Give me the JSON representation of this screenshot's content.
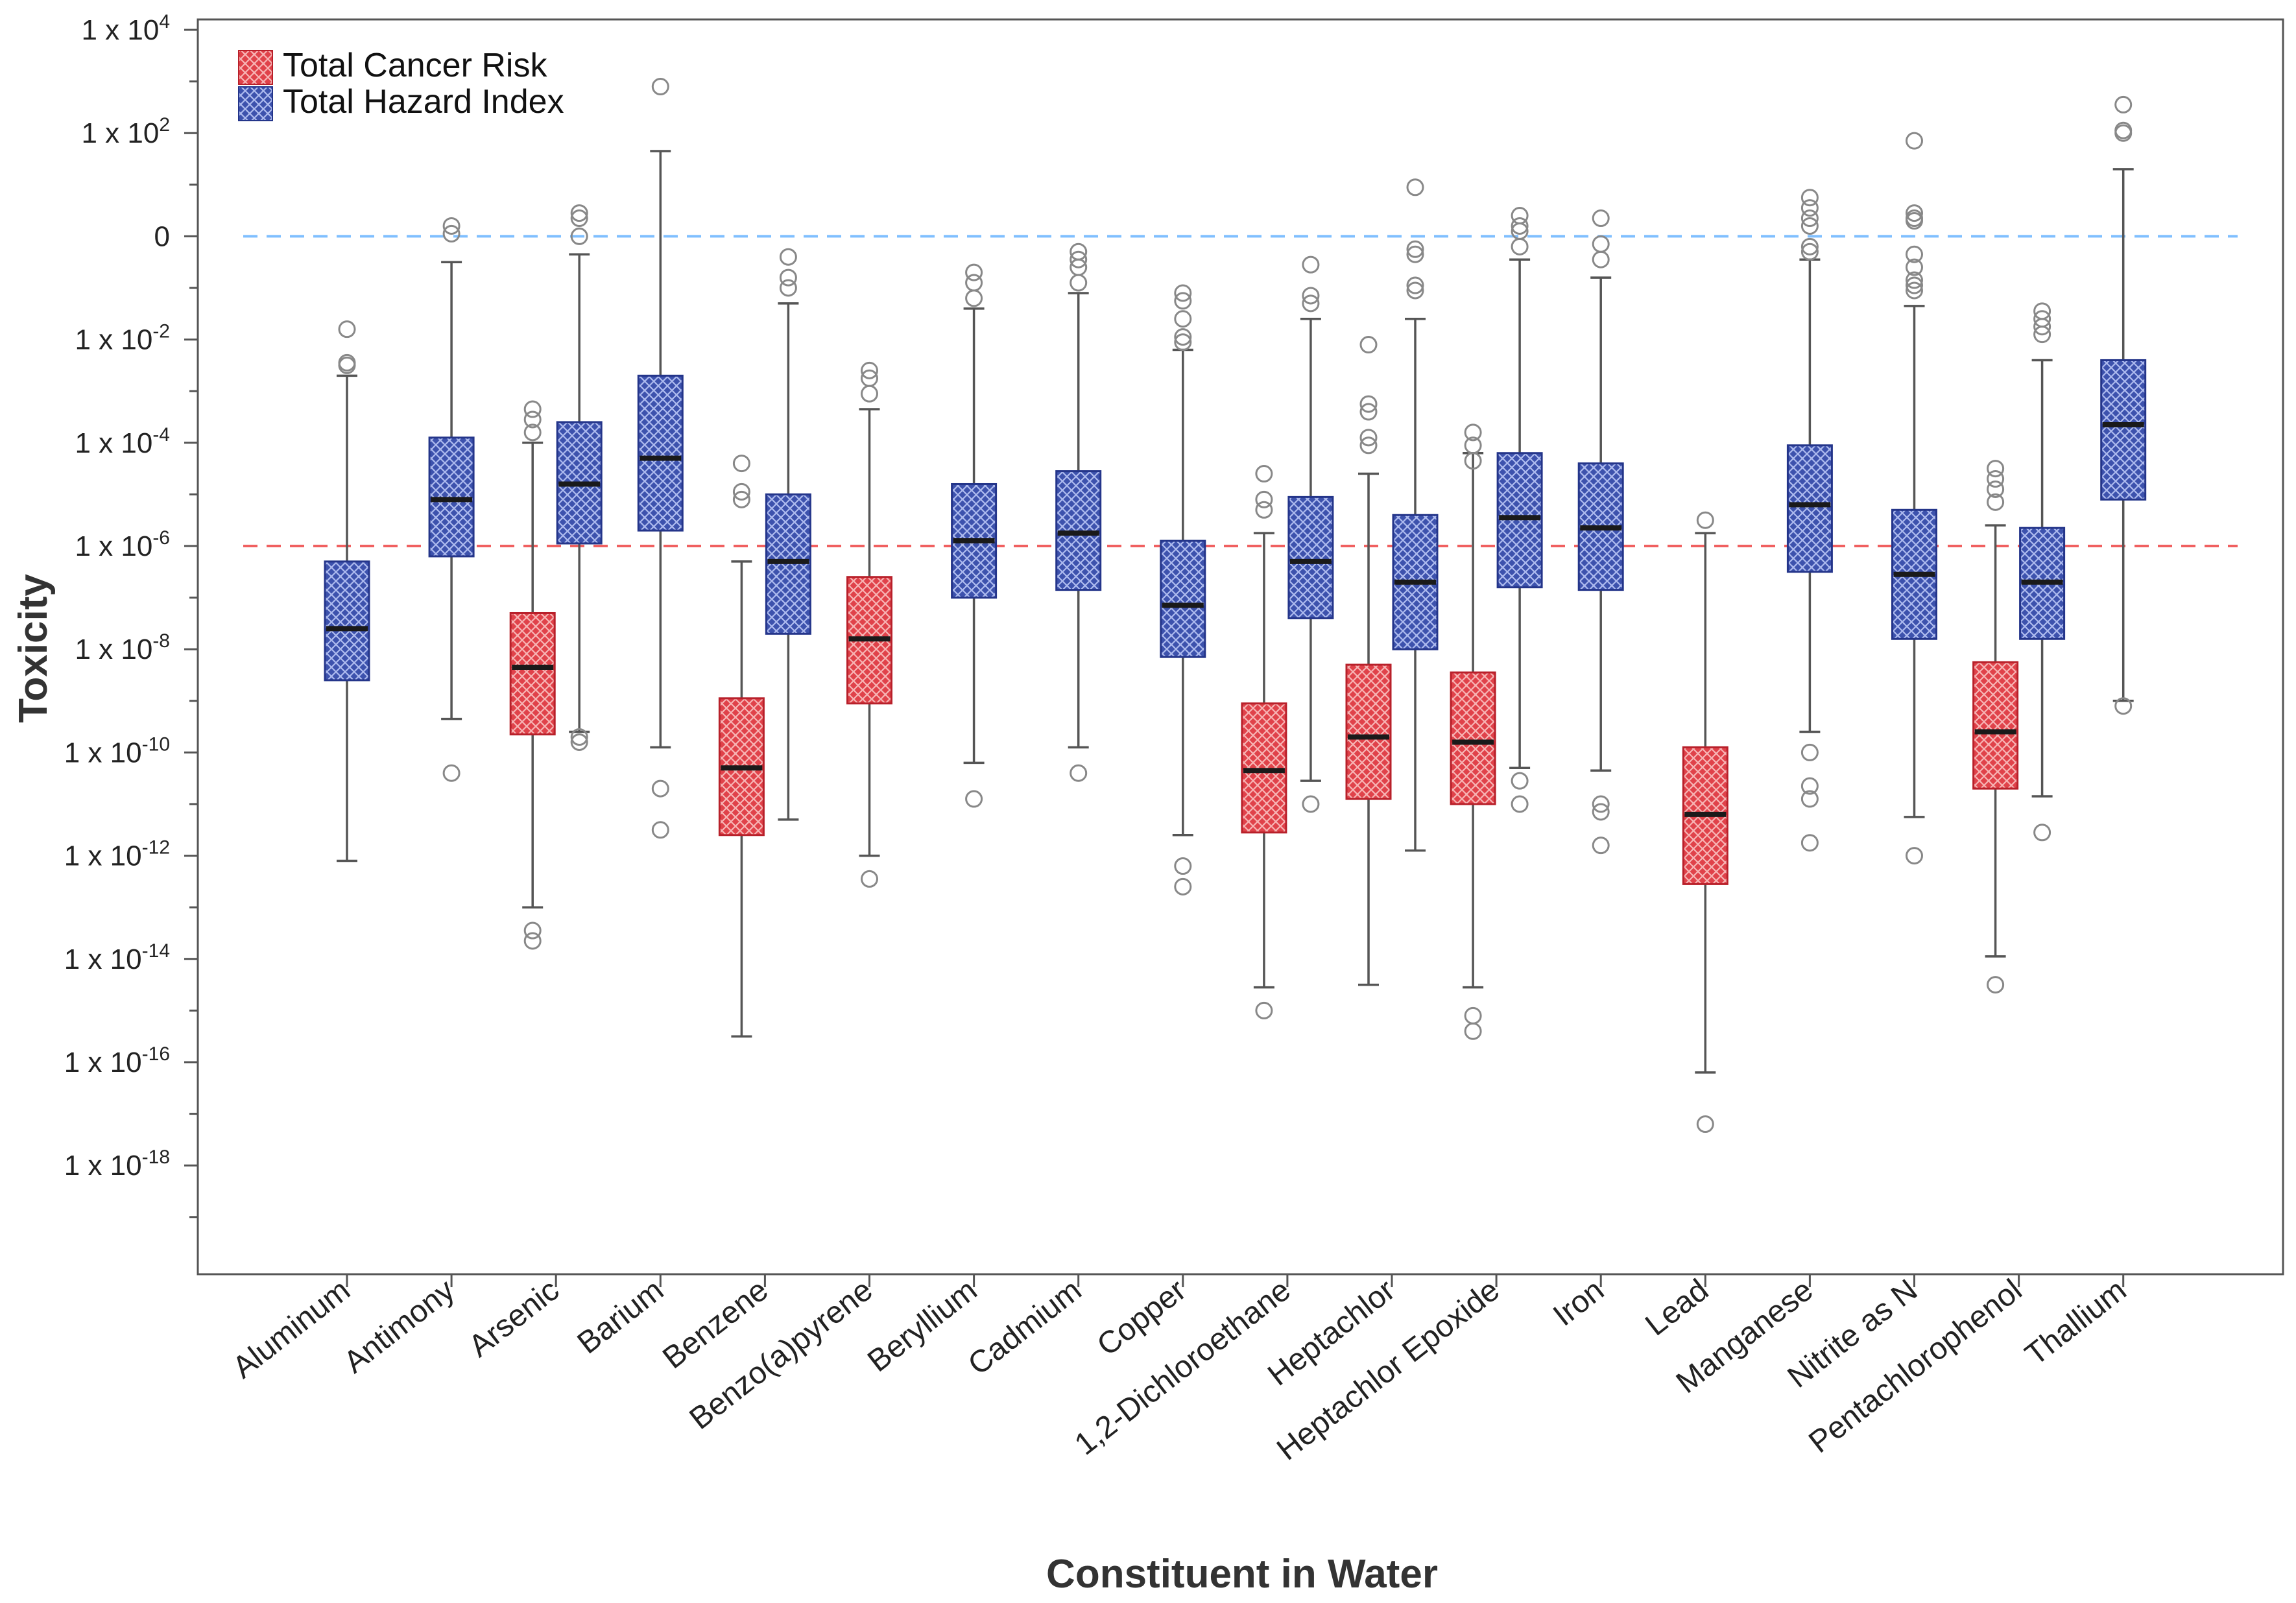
{
  "chart_data": {
    "type": "boxplot",
    "xlabel": "Constituent in Water",
    "ylabel": "Toxicity",
    "yscale": "log10",
    "ylim_exp": [
      -19,
      4
    ],
    "yticks": [
      {
        "exp": 4,
        "label": "1 x 10",
        "sup": "4"
      },
      {
        "exp": 2,
        "label": "1 x 10",
        "sup": "2"
      },
      {
        "exp": 0,
        "label": "0",
        "sup": ""
      },
      {
        "exp": -2,
        "label": "1 x 10",
        "sup": "-2"
      },
      {
        "exp": -4,
        "label": "1 x 10",
        "sup": "-4"
      },
      {
        "exp": -6,
        "label": "1 x 10",
        "sup": "-6"
      },
      {
        "exp": -8,
        "label": "1 x 10",
        "sup": "-8"
      },
      {
        "exp": -10,
        "label": "1 x 10",
        "sup": "-10"
      },
      {
        "exp": -12,
        "label": "1 x 10",
        "sup": "-12"
      },
      {
        "exp": -14,
        "label": "1 x 10",
        "sup": "-14"
      },
      {
        "exp": -16,
        "label": "1 x 10",
        "sup": "-16"
      },
      {
        "exp": -18,
        "label": "1 x 10",
        "sup": "-18"
      }
    ],
    "reference_lines": [
      {
        "exp": 0,
        "color": "#7fbfff",
        "meaning": "hazard index threshold"
      },
      {
        "exp": -6,
        "color": "#f06060",
        "meaning": "cancer risk threshold"
      }
    ],
    "categories": [
      "Aluminum",
      "Antimony",
      "Arsenic",
      "Barium",
      "Benzene",
      "Benzo(a)pyrene",
      "Beryllium",
      "Cadmium",
      "Copper",
      "1,2-Dichloroethane",
      "Heptachlor",
      "Heptachlor Epoxide",
      "Iron",
      "Lead",
      "Manganese",
      "Nitrite as N",
      "Pentachlorophenol",
      "Thallium"
    ],
    "legend": [
      {
        "key": "cancer",
        "label": "Total Cancer Risk",
        "color": "#e0424a"
      },
      {
        "key": "hazard",
        "label": "Total Hazard Index",
        "color": "#3d52ad"
      }
    ],
    "series": [
      {
        "category": "Aluminum",
        "metric": "hazard",
        "whisker_low": -12.1,
        "q1": -8.6,
        "median": -7.6,
        "q3": -6.3,
        "whisker_high": -2.7,
        "outliers": [
          -2.45,
          -2.5,
          -1.8
        ]
      },
      {
        "category": "Antimony",
        "metric": "hazard",
        "whisker_low": -9.35,
        "q1": -6.2,
        "median": -5.1,
        "q3": -3.9,
        "whisker_high": -0.5,
        "outliers": [
          0.2,
          0.05,
          -10.4
        ]
      },
      {
        "category": "Arsenic",
        "metric": "cancer",
        "whisker_low": -13.0,
        "q1": -9.65,
        "median": -8.35,
        "q3": -7.3,
        "whisker_high": -4.0,
        "outliers": [
          -3.35,
          -3.55,
          -3.8,
          -13.45,
          -13.65
        ]
      },
      {
        "category": "Arsenic",
        "metric": "hazard",
        "whisker_low": -9.6,
        "q1": -5.95,
        "median": -4.8,
        "q3": -3.6,
        "whisker_high": -0.35,
        "outliers": [
          0.45,
          0.35,
          0.0,
          -9.8,
          -9.7
        ]
      },
      {
        "category": "Barium",
        "metric": "hazard",
        "whisker_low": -9.9,
        "q1": -5.7,
        "median": -4.3,
        "q3": -2.7,
        "whisker_high": 1.65,
        "outliers": [
          2.9,
          -10.7,
          -11.5
        ]
      },
      {
        "category": "Benzene",
        "metric": "cancer",
        "whisker_low": -15.5,
        "q1": -11.6,
        "median": -10.3,
        "q3": -8.95,
        "whisker_high": -6.3,
        "outliers": [
          -4.4,
          -4.95,
          -5.1
        ]
      },
      {
        "category": "Benzene",
        "metric": "hazard",
        "whisker_low": -11.3,
        "q1": -7.7,
        "median": -6.3,
        "q3": -5.0,
        "whisker_high": -1.3,
        "outliers": [
          -0.4,
          -0.8,
          -1.0
        ]
      },
      {
        "category": "Benzo(a)pyrene",
        "metric": "cancer",
        "whisker_low": -12.0,
        "q1": -9.05,
        "median": -7.8,
        "q3": -6.6,
        "whisker_high": -3.35,
        "outliers": [
          -2.6,
          -2.75,
          -3.05,
          -12.45
        ]
      },
      {
        "category": "Beryllium",
        "metric": "hazard",
        "whisker_low": -10.2,
        "q1": -7.0,
        "median": -5.9,
        "q3": -4.8,
        "whisker_high": -1.4,
        "outliers": [
          -0.7,
          -0.9,
          -1.2,
          -10.9
        ]
      },
      {
        "category": "Cadmium",
        "metric": "hazard",
        "whisker_low": -9.9,
        "q1": -6.85,
        "median": -5.75,
        "q3": -4.55,
        "whisker_high": -1.1,
        "outliers": [
          -0.3,
          -0.45,
          -0.6,
          -0.9,
          -10.4
        ]
      },
      {
        "category": "Copper",
        "metric": "hazard",
        "whisker_low": -11.6,
        "q1": -8.15,
        "median": -7.15,
        "q3": -5.9,
        "whisker_high": -2.2,
        "outliers": [
          -1.1,
          -1.25,
          -1.6,
          -1.95,
          -2.05,
          -12.2,
          -12.6
        ]
      },
      {
        "category": "1,2-Dichloroethane",
        "metric": "cancer",
        "whisker_low": -14.55,
        "q1": -11.55,
        "median": -10.35,
        "q3": -9.05,
        "whisker_high": -5.75,
        "outliers": [
          -4.6,
          -5.1,
          -5.3,
          -15.0
        ]
      },
      {
        "category": "1,2-Dichloroethane",
        "metric": "hazard",
        "whisker_low": -10.55,
        "q1": -7.4,
        "median": -6.3,
        "q3": -5.05,
        "whisker_high": -1.6,
        "outliers": [
          -0.55,
          -1.15,
          -1.3,
          -11.0
        ]
      },
      {
        "category": "Heptachlor",
        "metric": "cancer",
        "whisker_low": -14.5,
        "q1": -10.9,
        "median": -9.7,
        "q3": -8.3,
        "whisker_high": -4.6,
        "outliers": [
          -2.1,
          -3.25,
          -3.4,
          -3.9,
          -4.05
        ]
      },
      {
        "category": "Heptachlor",
        "metric": "hazard",
        "whisker_low": -11.9,
        "q1": -8.0,
        "median": -6.7,
        "q3": -5.4,
        "whisker_high": -1.6,
        "outliers": [
          0.95,
          -0.25,
          -0.35,
          -0.95,
          -1.05
        ]
      },
      {
        "category": "Heptachlor Epoxide",
        "metric": "cancer",
        "whisker_low": -14.55,
        "q1": -11.0,
        "median": -9.8,
        "q3": -8.45,
        "whisker_high": -4.2,
        "outliers": [
          -3.8,
          -4.05,
          -4.35,
          -15.1,
          -15.4
        ]
      },
      {
        "category": "Heptachlor Epoxide",
        "metric": "hazard",
        "whisker_low": -10.3,
        "q1": -6.8,
        "median": -5.45,
        "q3": -4.2,
        "whisker_high": -0.45,
        "outliers": [
          0.4,
          0.2,
          0.1,
          -0.2,
          -10.55,
          -11.0
        ]
      },
      {
        "category": "Iron",
        "metric": "hazard",
        "whisker_low": -10.35,
        "q1": -6.85,
        "median": -5.65,
        "q3": -4.4,
        "whisker_high": -0.8,
        "outliers": [
          0.35,
          -0.15,
          -0.45,
          -11.0,
          -11.15,
          -11.8
        ]
      },
      {
        "category": "Lead",
        "metric": "cancer",
        "whisker_low": -16.2,
        "q1": -12.55,
        "median": -11.2,
        "q3": -9.9,
        "whisker_high": -5.75,
        "outliers": [
          -5.5,
          -17.2
        ]
      },
      {
        "category": "Manganese",
        "metric": "hazard",
        "whisker_low": -9.6,
        "q1": -6.5,
        "median": -5.2,
        "q3": -4.05,
        "whisker_high": -0.45,
        "outliers": [
          0.75,
          0.55,
          0.35,
          0.2,
          -0.2,
          -0.3,
          -10.0,
          -10.65,
          -10.9,
          -11.75
        ]
      },
      {
        "category": "Nitrite as N",
        "metric": "hazard",
        "whisker_low": -11.25,
        "q1": -7.8,
        "median": -6.55,
        "q3": -5.3,
        "whisker_high": -1.35,
        "outliers": [
          1.85,
          0.45,
          0.35,
          0.3,
          -0.35,
          -0.6,
          -0.85,
          -0.95,
          -1.05,
          -12.0
        ]
      },
      {
        "category": "Pentachlorophenol",
        "metric": "cancer",
        "whisker_low": -13.95,
        "q1": -10.7,
        "median": -9.6,
        "q3": -8.25,
        "whisker_high": -5.6,
        "outliers": [
          -4.5,
          -4.7,
          -4.9,
          -5.15,
          -14.5
        ]
      },
      {
        "category": "Pentachlorophenol",
        "metric": "hazard",
        "whisker_low": -10.85,
        "q1": -7.8,
        "median": -6.7,
        "q3": -5.65,
        "whisker_high": -2.4,
        "outliers": [
          -1.45,
          -1.6,
          -1.75,
          -1.9,
          -11.55
        ]
      },
      {
        "category": "Thallium",
        "metric": "hazard",
        "whisker_low": -9.0,
        "q1": -5.1,
        "median": -3.65,
        "q3": -2.4,
        "whisker_high": 1.3,
        "outliers": [
          2.55,
          2.05,
          2.0,
          -9.1
        ]
      }
    ]
  }
}
